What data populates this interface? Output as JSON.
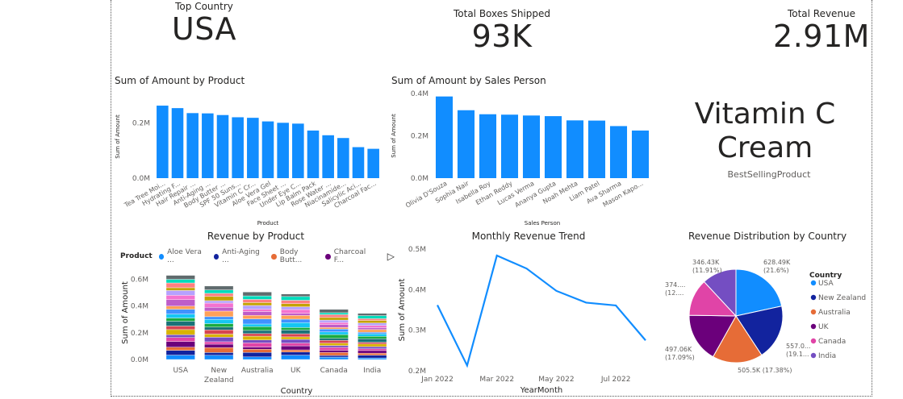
{
  "cards": {
    "top_country": {
      "label": "Top Country",
      "value": "USA"
    },
    "boxes": {
      "label": "Total Boxes Shipped",
      "value": "93K"
    },
    "revenue": {
      "label": "Total Revenue",
      "value": "2.91M"
    },
    "best_product": {
      "line1": "Vitamin C",
      "line2": "Cream",
      "label": "BestSellingProduct"
    }
  },
  "colors": {
    "bar": "#118DFF",
    "palette": [
      "#118DFF",
      "#12239E",
      "#E66C37",
      "#6B007B",
      "#E044A7",
      "#744EC2",
      "#D9B300",
      "#D64550",
      "#197278",
      "#1AAB40",
      "#15C6F4",
      "#4092FF",
      "#FFA058",
      "#BE5DC9",
      "#F472D0",
      "#B5A1FF",
      "#C4A200",
      "#FF8080",
      "#00DBBC",
      "#5F6B6D"
    ]
  },
  "chart_data": [
    {
      "type": "bar",
      "id": "by_product",
      "title": "Sum of Amount by Product",
      "xlabel": "Product",
      "ylabel": "Sum of Amount",
      "ylim": [
        0,
        300000
      ],
      "ticks": [
        {
          "v": 0,
          "t": "0.0M"
        },
        {
          "v": 200000,
          "t": "0.2M"
        }
      ],
      "categories": [
        "Tea Tree Moi...",
        "Hydrating F...",
        "Hair Repair ...",
        "Anti-Aging ...",
        "Body Butter ...",
        "SPF 50 Suns...",
        "Vitamin C Cr...",
        "Aloe Vera Gel",
        "Face Sheet ...",
        "Under Eye C...",
        "Lip Balm Pack",
        "Rose Water ...",
        "Niacinamide...",
        "Salicylic Aci...",
        "Charcoal Fac..."
      ],
      "values": [
        262000,
        253000,
        235000,
        234000,
        228000,
        220000,
        218000,
        205000,
        200000,
        197000,
        172000,
        155000,
        145000,
        112000,
        106000
      ]
    },
    {
      "type": "bar",
      "id": "by_sales",
      "title": "Sum of Amount by Sales Person",
      "xlabel": "Sales Person",
      "ylabel": "Sum of Amount",
      "ylim": [
        0,
        400000
      ],
      "ticks": [
        {
          "v": 0,
          "t": "0.0M"
        },
        {
          "v": 200000,
          "t": "0.2M"
        },
        {
          "v": 400000,
          "t": "0.4M"
        }
      ],
      "categories": [
        "Olivia D'Souza",
        "Sophia Nair",
        "Isabella Roy",
        "Ethan Reddy",
        "Lucas Verma",
        "Ananya Gupta",
        "Noah Mehta",
        "Liam Patel",
        "Ava Sharma",
        "Mason Kapo..."
      ],
      "values": [
        386000,
        321000,
        302000,
        300000,
        296000,
        293000,
        273000,
        272000,
        246000,
        225000
      ]
    },
    {
      "type": "bar",
      "id": "stacked",
      "stacked": true,
      "title": "Revenue by Product",
      "xlabel": "Country",
      "ylabel": "Sum of Amount",
      "ylim": [
        0,
        0.7
      ],
      "ticks": [
        {
          "v": 0,
          "t": "0.0M"
        },
        {
          "v": 0.2,
          "t": "0.2M"
        },
        {
          "v": 0.4,
          "t": "0.4M"
        },
        {
          "v": 0.6,
          "t": "0.6M"
        }
      ],
      "legend_title": "Product",
      "legend": [
        "Aloe Vera ...",
        "Anti-Aging ...",
        "Body Butt...",
        "Charcoal F..."
      ],
      "categories": [
        "USA",
        "New Zealand",
        "Australia",
        "UK",
        "Canada",
        "India"
      ],
      "totals": [
        0.63,
        0.55,
        0.505,
        0.49,
        0.375,
        0.345
      ]
    },
    {
      "type": "line",
      "id": "monthly",
      "title": "Monthly Revenue Trend",
      "xlabel": "YearMonth",
      "ylabel": "Sum of Amount",
      "ylim": [
        0.2,
        0.5
      ],
      "ticks": [
        {
          "v": 0.2,
          "t": "0.2M"
        },
        {
          "v": 0.3,
          "t": "0.3M"
        },
        {
          "v": 0.4,
          "t": "0.4M"
        },
        {
          "v": 0.5,
          "t": "0.5M"
        }
      ],
      "x": [
        0,
        1,
        2,
        3,
        4,
        5,
        6,
        7
      ],
      "values": [
        0.362,
        0.213,
        0.484,
        0.452,
        0.397,
        0.368,
        0.361,
        0.275
      ],
      "xticks": [
        {
          "i": 0,
          "t": "Jan 2022"
        },
        {
          "i": 2,
          "t": "Mar 2022"
        },
        {
          "i": 4,
          "t": "May 2022"
        },
        {
          "i": 6,
          "t": "Jul 2022"
        }
      ]
    },
    {
      "type": "pie",
      "id": "country",
      "title": "Revenue Distribution by Country",
      "legend_title": "Country",
      "slices": [
        {
          "name": "USA",
          "value": 628490,
          "label1": "628.49K",
          "label2": "(21.6%)"
        },
        {
          "name": "New Zealand",
          "value": 557000,
          "label1": "557.0...",
          "label2": "(19.1..."
        },
        {
          "name": "Australia",
          "value": 505500,
          "label1": "505.5K (17.38%)",
          "label2": ""
        },
        {
          "name": "UK",
          "value": 497060,
          "label1": "497.06K",
          "label2": "(17.09%)"
        },
        {
          "name": "Canada",
          "value": 374000,
          "label1": "374....",
          "label2": "(12...."
        },
        {
          "name": "India",
          "value": 346430,
          "label1": "346.43K",
          "label2": "(11.91%)"
        }
      ],
      "colors": [
        "#118DFF",
        "#12239E",
        "#E66C37",
        "#6B007B",
        "#E044A7",
        "#744EC2"
      ]
    }
  ]
}
